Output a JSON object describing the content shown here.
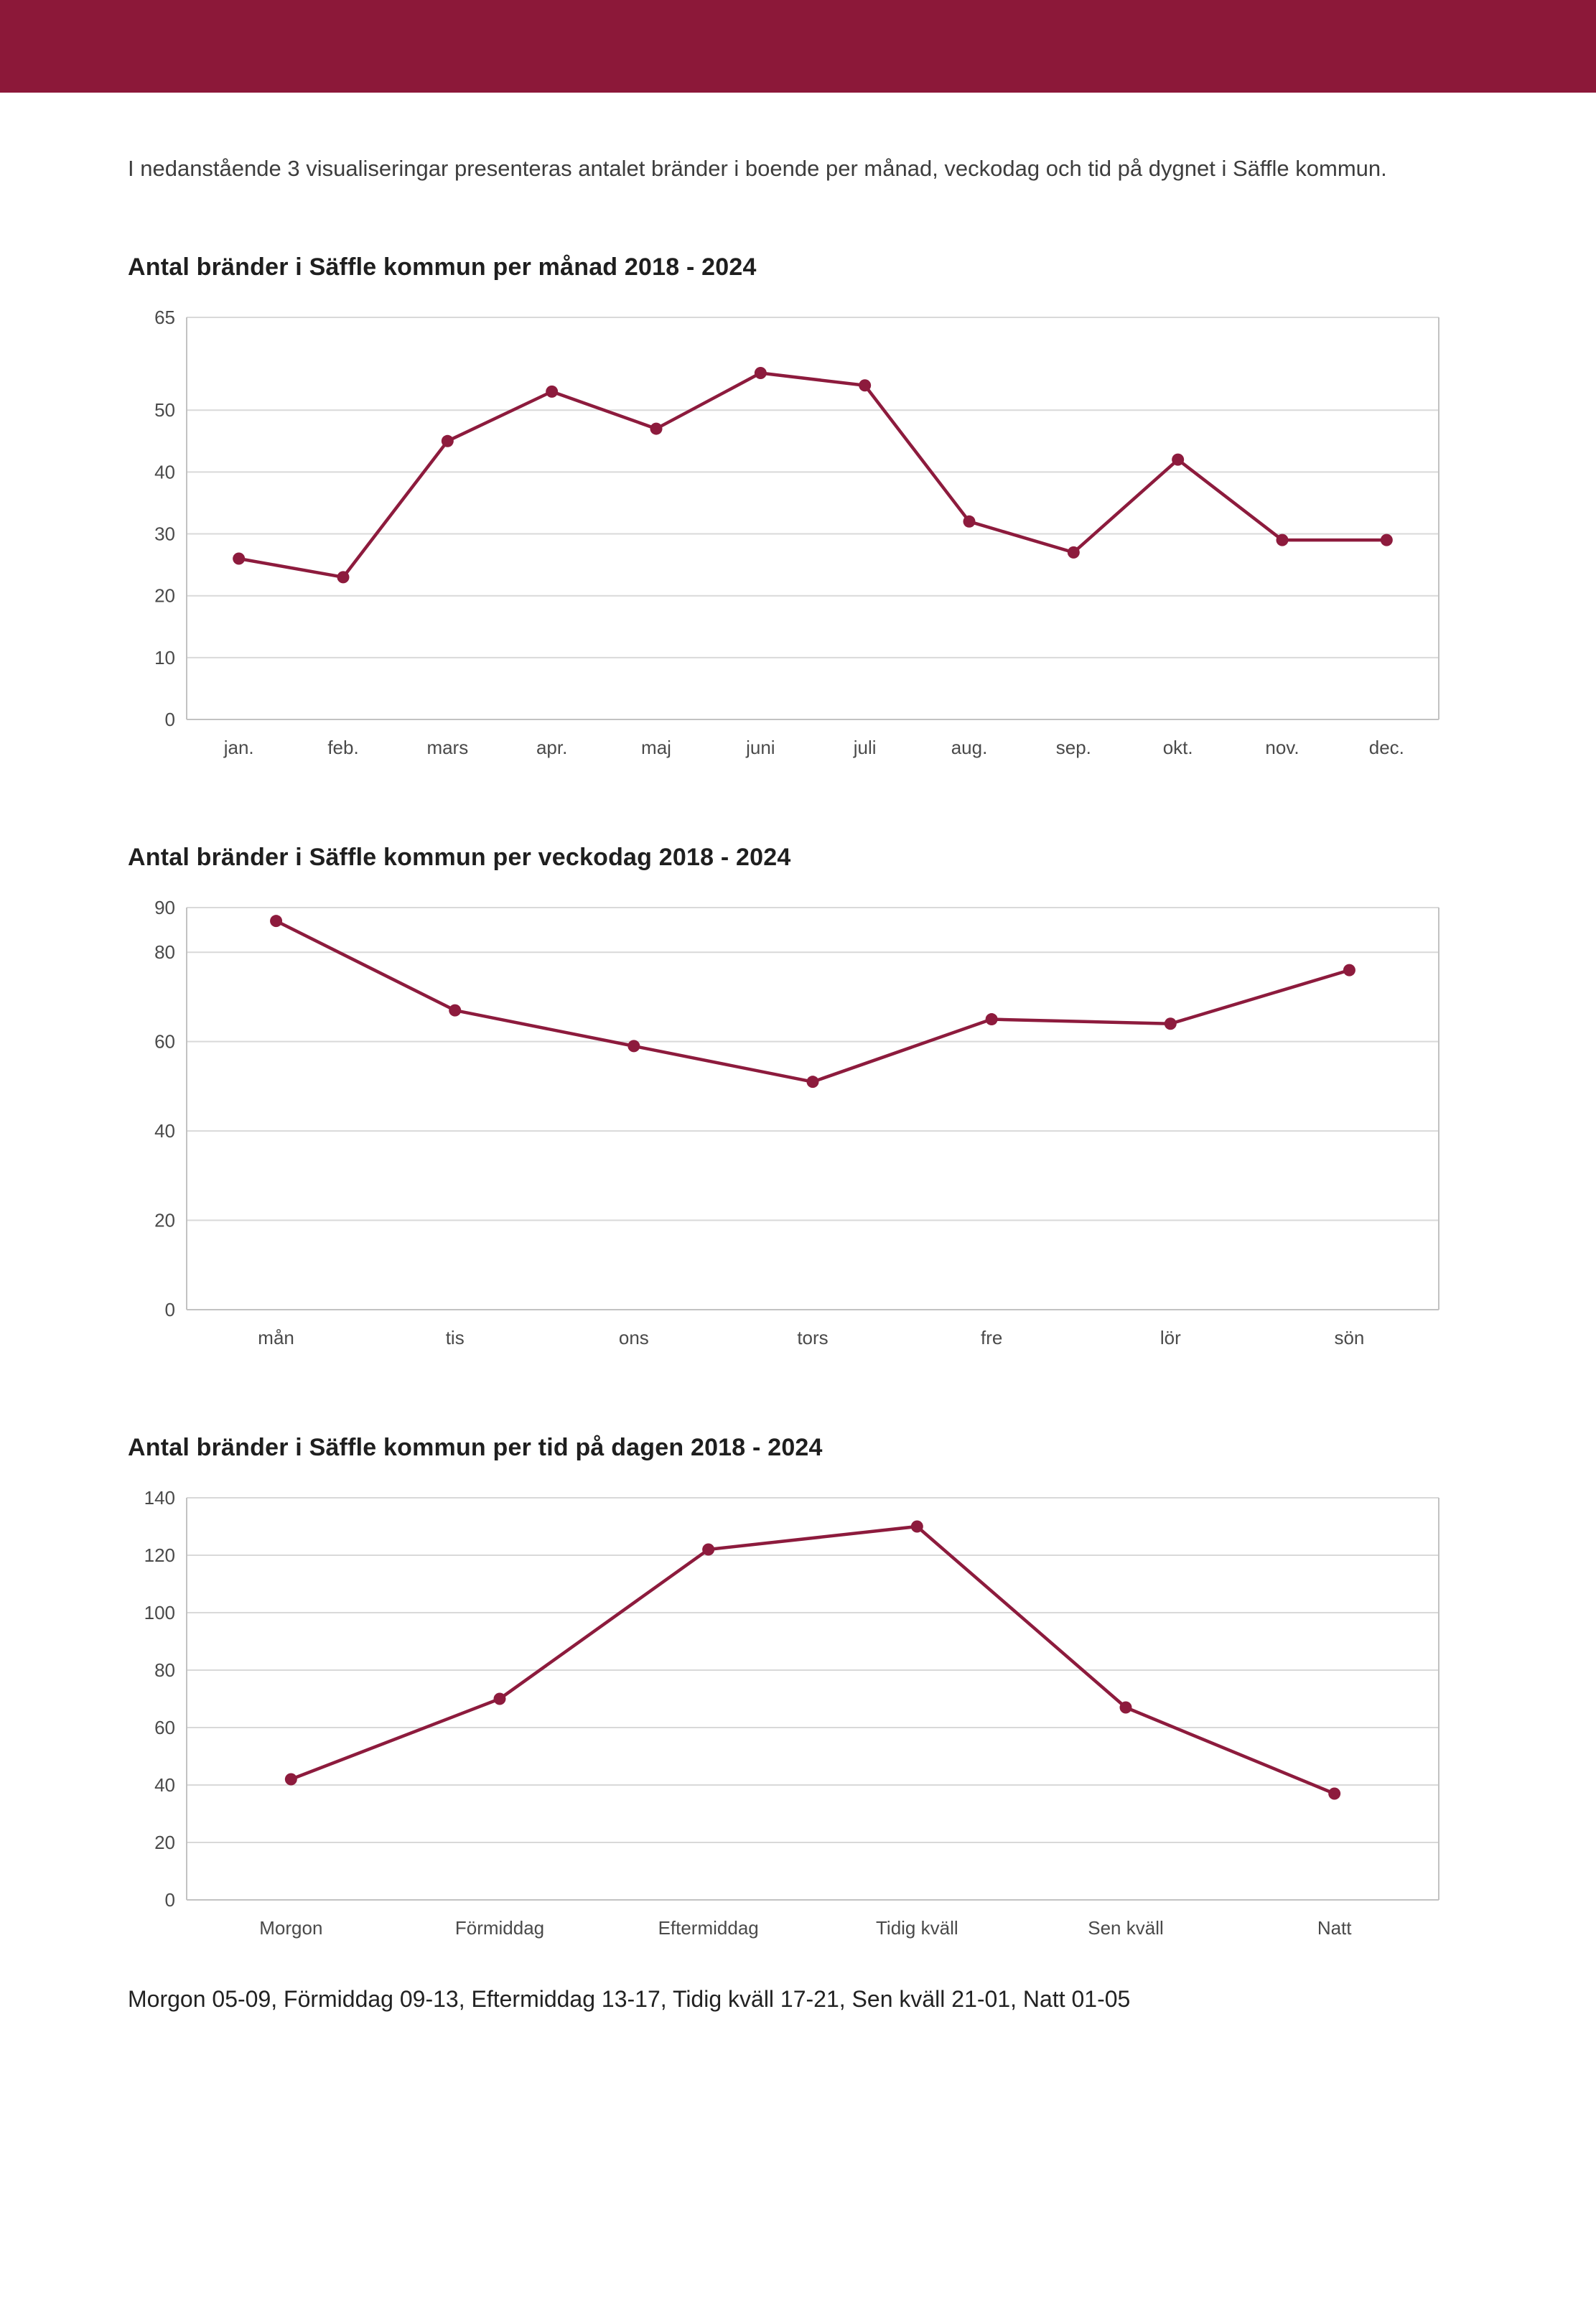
{
  "page": {
    "intro": "I nedanstående 3 visualiseringar presenteras antalet bränder i boende per månad, veckodag och tid på dygnet i Säffle kommun.",
    "footer_note": "Morgon 05-09, Förmiddag 09-13, Eftermiddag 13-17, Tidig kväll 17-21, Sen kväll 21-01, Natt 01-05"
  },
  "colors": {
    "header_band": "#8c1839",
    "line": "#8d1b3d",
    "grid": "#d9d9d9",
    "axis": "#c2c2c2",
    "tick_text": "#4a4a4a"
  },
  "chart_data": [
    {
      "type": "line",
      "title": "Antal bränder i Säffle kommun per månad 2018 - 2024",
      "categories": [
        "jan.",
        "feb.",
        "mars",
        "apr.",
        "maj",
        "juni",
        "juli",
        "aug.",
        "sep.",
        "okt.",
        "nov.",
        "dec."
      ],
      "values": [
        26,
        23,
        45,
        53,
        47,
        56,
        54,
        32,
        27,
        42,
        29,
        29
      ],
      "xlabel": "",
      "ylabel": "",
      "ylim": [
        0,
        65
      ],
      "yticks": [
        0,
        10,
        20,
        30,
        40,
        50,
        65
      ],
      "grid": true,
      "legend": "none"
    },
    {
      "type": "line",
      "title": "Antal bränder i Säffle kommun per veckodag 2018 - 2024",
      "categories": [
        "mån",
        "tis",
        "ons",
        "tors",
        "fre",
        "lör",
        "sön"
      ],
      "values": [
        87,
        67,
        59,
        51,
        65,
        64,
        76
      ],
      "xlabel": "",
      "ylabel": "",
      "ylim": [
        0,
        90
      ],
      "yticks": [
        0,
        20,
        40,
        60,
        80,
        90
      ],
      "grid": true,
      "legend": "none"
    },
    {
      "type": "line",
      "title": "Antal bränder i Säffle kommun per tid på dagen 2018 - 2024",
      "categories": [
        "Morgon",
        "Förmiddag",
        "Eftermiddag",
        "Tidig kväll",
        "Sen kväll",
        "Natt"
      ],
      "values": [
        42,
        70,
        122,
        130,
        67,
        37
      ],
      "xlabel": "",
      "ylabel": "",
      "ylim": [
        0,
        140
      ],
      "yticks": [
        0,
        20,
        40,
        60,
        80,
        100,
        120,
        140
      ],
      "grid": true,
      "legend": "none"
    }
  ]
}
